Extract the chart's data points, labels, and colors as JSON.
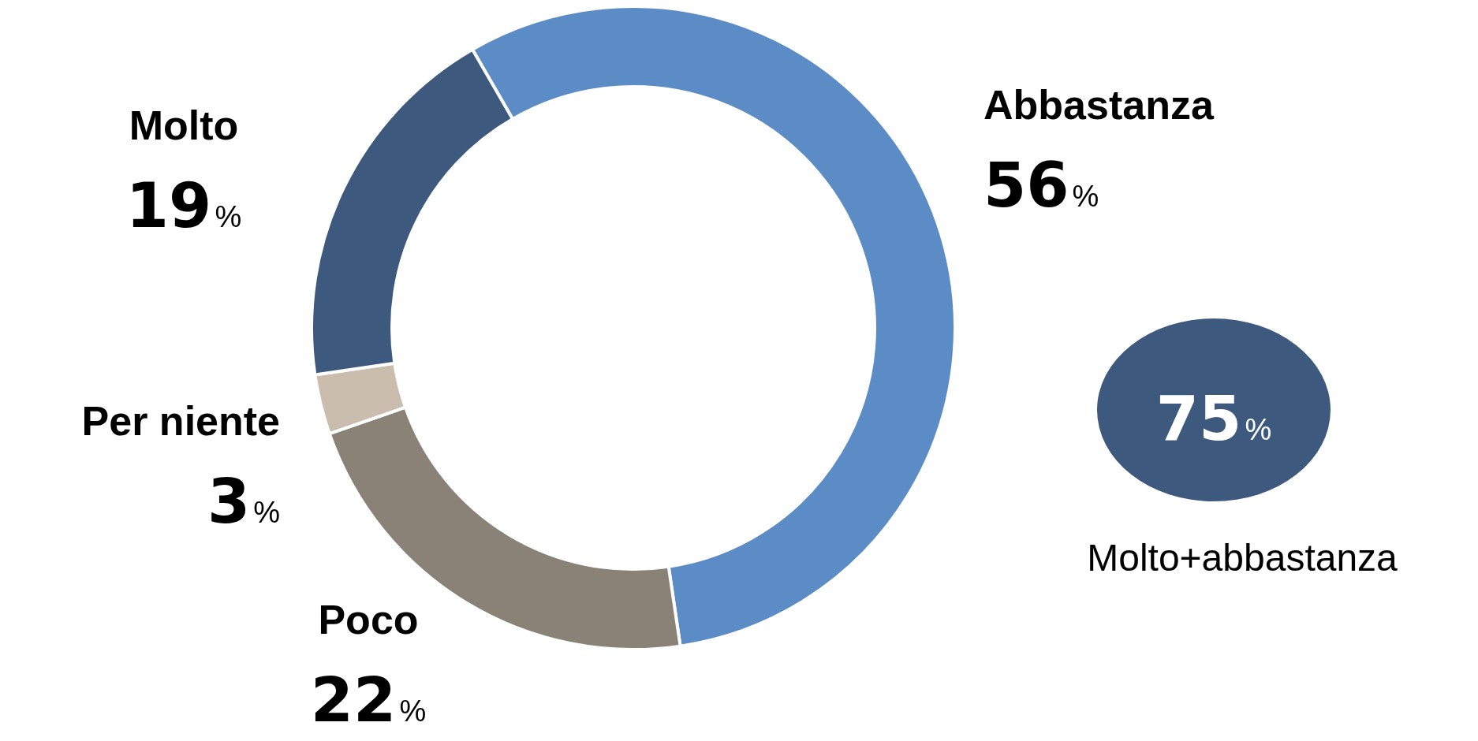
{
  "chart_data": {
    "type": "donut",
    "categories": [
      "Abbastanza",
      "Poco",
      "Per niente",
      "Molto"
    ],
    "values": [
      56,
      22,
      3,
      19
    ],
    "colors": [
      "#5b8cc6",
      "#8a8177",
      "#cabdad",
      "#3d5a7e"
    ],
    "value_labels": [
      "56%",
      "22%",
      "3%",
      "19%"
    ],
    "legend": false,
    "annotations": [
      "75%",
      "Molto+abbastanza"
    ]
  }
}
